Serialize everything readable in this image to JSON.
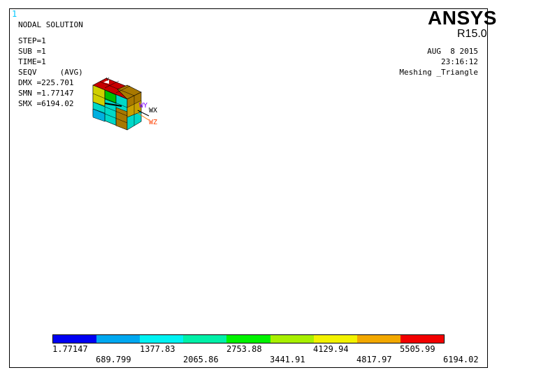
{
  "window_number": "1",
  "brand": {
    "logo": "ANSYS",
    "release": "R15.0"
  },
  "result": {
    "title": "NODAL SOLUTION",
    "step": "STEP=1",
    "sub": "SUB =1",
    "time": "TIME=1",
    "quantity": "SEQV     (AVG)",
    "dmx": "DMX =225.701",
    "smn": "SMN =1.77147",
    "smx": "SMX =6194.02"
  },
  "meta": {
    "date": "AUG  8 2015",
    "time": "23:16:12",
    "job": "Meshing _Triangle"
  },
  "triad": {
    "wx": "WX",
    "wy": "WY",
    "wz": "WZ"
  },
  "legend": {
    "colors": [
      "#0000f2",
      "#00a8f0",
      "#00f2f2",
      "#00f0a8",
      "#00f200",
      "#a8f000",
      "#f2f200",
      "#f2a800",
      "#f20000"
    ],
    "upper_labels": [
      "1.77147",
      "1377.83",
      "2753.88",
      "4129.94",
      "5505.99"
    ],
    "lower_labels": [
      "689.799",
      "2065.86",
      "3441.91",
      "4817.97",
      "6194.02"
    ]
  }
}
